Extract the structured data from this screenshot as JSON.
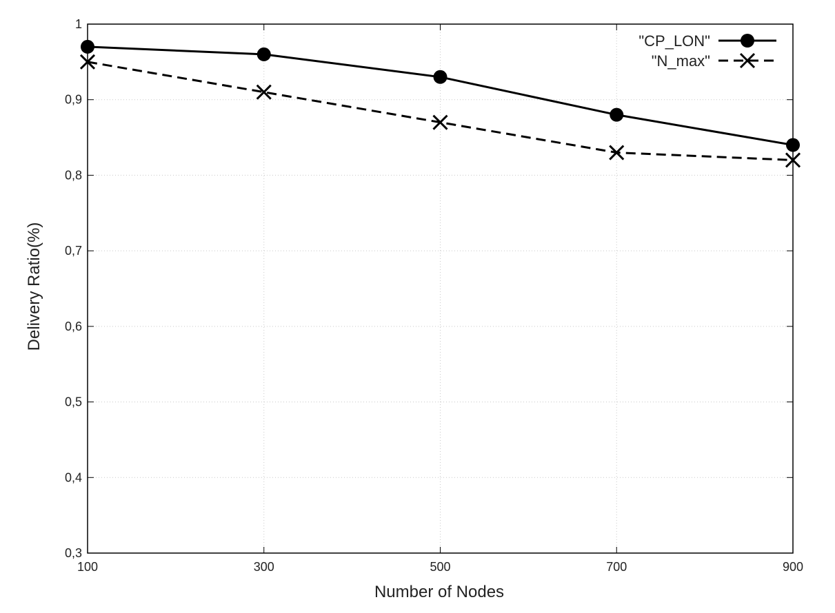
{
  "chart_data": {
    "type": "line",
    "title": "",
    "xlabel": "Number of Nodes",
    "ylabel": "Delivery Ratio(%)",
    "x": [
      100,
      300,
      500,
      700,
      900
    ],
    "x_tick_labels": [
      "100",
      "300",
      "500",
      "700",
      "900"
    ],
    "xlim": [
      100,
      900
    ],
    "ylim": [
      0.3,
      1.0
    ],
    "y_ticks": [
      0.3,
      0.4,
      0.5,
      0.6,
      0.7,
      0.8,
      0.9,
      1.0
    ],
    "y_tick_labels": [
      "0,3",
      "0,4",
      "0,5",
      "0,6",
      "0,7",
      "0,8",
      "0,9",
      "1"
    ],
    "grid": true,
    "legend_position": "top-right",
    "series": [
      {
        "name": "\"CP_LON\"",
        "values": [
          0.97,
          0.96,
          0.93,
          0.88,
          0.84
        ],
        "line_style": "solid",
        "marker": "filled-circle",
        "color": "#000000"
      },
      {
        "name": "\"N_max\"",
        "values": [
          0.95,
          0.91,
          0.87,
          0.83,
          0.82
        ],
        "line_style": "dashed",
        "marker": "x-cross",
        "color": "#000000"
      }
    ]
  }
}
